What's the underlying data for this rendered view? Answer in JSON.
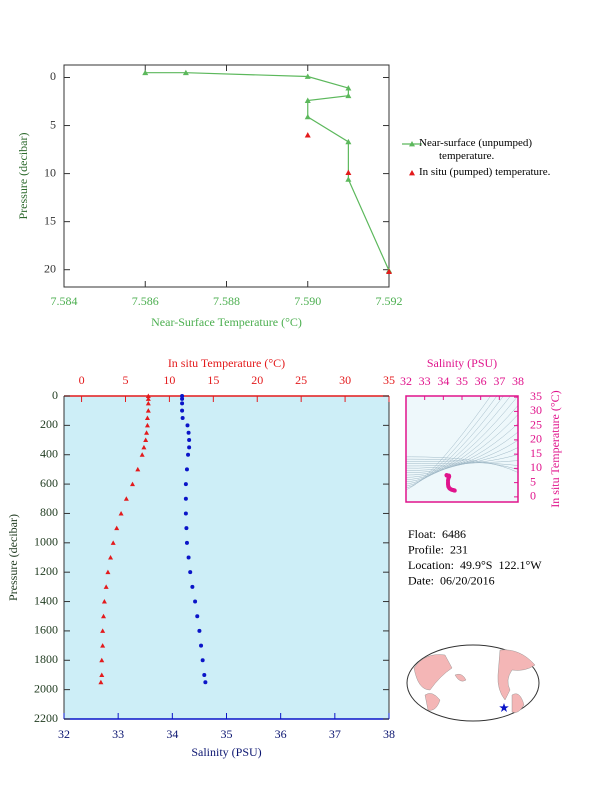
{
  "chart_data": [
    {
      "type": "line",
      "xlabel": "Near-Surface Temperature (°C)",
      "ylabel": "Pressure (decibar)",
      "xlim": [
        7.584,
        7.592
      ],
      "xticks": [
        7.584,
        7.586,
        7.588,
        {
          "value": 7.59,
          "label": "7.590"
        },
        7.592
      ],
      "ylim": [
        -1.3,
        21.8
      ],
      "yticks": [
        0,
        5,
        10,
        15,
        20
      ],
      "y_reversed": true,
      "axis_color": "#4caf50",
      "legend": "right",
      "series": [
        {
          "name": "Near-surface (unpumped) temperature.",
          "color": "#5cb85c",
          "marker": "triangle",
          "line": true,
          "x": [
            7.586,
            7.587,
            7.59,
            7.591,
            7.591,
            7.59,
            7.59,
            7.591,
            7.591,
            7.592
          ],
          "y": [
            -0.5,
            -0.5,
            -0.1,
            1.1,
            1.9,
            2.4,
            4.1,
            6.7,
            10.6,
            20.1
          ]
        },
        {
          "name": "In situ (pumped) temperature.",
          "color": "#e31a1c",
          "marker": "triangle",
          "line": false,
          "x": [
            7.59,
            7.591,
            7.592
          ],
          "y": [
            6.0,
            9.9,
            20.2
          ]
        }
      ]
    },
    {
      "type": "scatter",
      "xlabel": "Salinity (PSU)",
      "x2label": "In situ Temperature (°C)",
      "ylabel": "Pressure (decibar)",
      "xlim": [
        32,
        38
      ],
      "xticks": [
        32,
        33,
        34,
        35,
        36,
        37,
        38
      ],
      "x2lim": [
        -2,
        35
      ],
      "x2ticks": [
        0,
        5,
        10,
        15,
        20,
        25,
        30,
        35
      ],
      "ylim": [
        0,
        2200
      ],
      "yticks": [
        0,
        200,
        400,
        600,
        800,
        1000,
        1200,
        1400,
        1600,
        1800,
        2000,
        2200
      ],
      "y_reversed": true,
      "background": "#cdeef7",
      "y": [
        0,
        20,
        50,
        100,
        150,
        200,
        250,
        300,
        350,
        400,
        500,
        600,
        700,
        800,
        900,
        1000,
        1100,
        1200,
        1300,
        1400,
        1500,
        1600,
        1700,
        1800,
        1900,
        1950
      ],
      "series": [
        {
          "color": "#e31a1c",
          "marker": "triangle",
          "axis": "x2",
          "values": [
            7.6,
            7.6,
            7.6,
            7.6,
            7.5,
            7.5,
            7.4,
            7.3,
            7.1,
            6.9,
            6.4,
            5.8,
            5.1,
            4.5,
            4.0,
            3.6,
            3.3,
            3.0,
            2.8,
            2.6,
            2.5,
            2.4,
            2.4,
            2.3,
            2.3,
            2.2
          ]
        },
        {
          "color": "#0a14c8",
          "marker": "circle",
          "axis": "x",
          "values": [
            34.18,
            34.18,
            34.18,
            34.18,
            34.19,
            34.28,
            34.3,
            34.31,
            34.31,
            34.29,
            34.27,
            34.25,
            34.25,
            34.25,
            34.26,
            34.27,
            34.3,
            34.33,
            34.37,
            34.42,
            34.46,
            34.5,
            34.53,
            34.56,
            34.59,
            34.61
          ]
        }
      ]
    },
    {
      "type": "ts",
      "title": "Salinity (PSU)",
      "ylabel": "In situ Temperature (°C)",
      "xlim": [
        32,
        38
      ],
      "xticks": [
        32,
        33,
        34,
        35,
        36,
        37,
        38
      ],
      "ylim": [
        -1.8,
        35.4
      ],
      "yticks": [
        0,
        5,
        10,
        15,
        20,
        25,
        30,
        35
      ],
      "color": "#e0148c"
    }
  ],
  "info": [
    "Float:  6486",
    "Profile:  231",
    "Location:  49.9°S  122.1°W",
    "Date:  06/20/2016"
  ]
}
